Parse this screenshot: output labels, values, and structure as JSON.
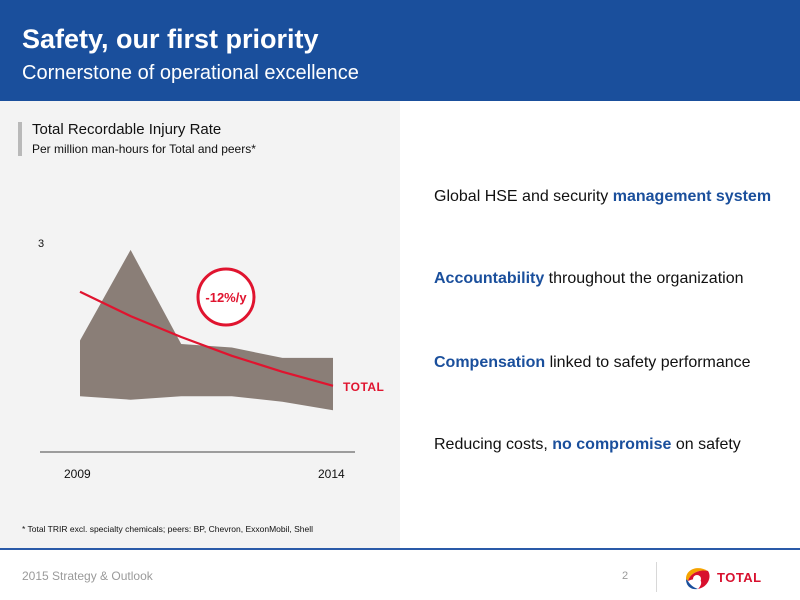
{
  "header": {
    "title": "Safety, our first priority",
    "subtitle": "Cornerstone of operational excellence"
  },
  "chart_data": {
    "type": "area",
    "title": "Total Recordable Injury Rate",
    "subtitle": "Per million man-hours for Total and peers*",
    "x_labels": [
      "2009",
      "2014"
    ],
    "y_tick_label": "3",
    "y_tick_value": 3,
    "ylim": [
      0,
      3.3
    ],
    "x": [
      2009,
      2010,
      2011,
      2012,
      2013,
      2014
    ],
    "series": [
      {
        "values_upper": [
          1.6,
          2.9,
          1.55,
          1.5,
          1.35,
          1.35
        ],
        "values_lower": [
          0.8,
          0.75,
          0.8,
          0.8,
          0.72,
          0.6
        ]
      },
      {
        "name": "TOTAL",
        "values": [
          2.3,
          1.95,
          1.65,
          1.38,
          1.15,
          0.95
        ]
      }
    ],
    "annotation": "-12%/y",
    "series_label": "TOTAL",
    "colors": {
      "band": "#8a7e77",
      "line": "#e0142f",
      "axis": "#444444"
    },
    "grid": false
  },
  "footnote": "* Total TRIR excl. specialty chemicals; peers: BP, Chevron, ExxonMobil, Shell",
  "bullets": [
    {
      "pre": "Global HSE and security ",
      "em": "management system",
      "post": ""
    },
    {
      "pre": "",
      "em": "Accountability",
      "post": " throughout the organization"
    },
    {
      "pre": "",
      "em": "Compensation",
      "post": " linked to safety performance"
    },
    {
      "pre": "Reducing costs, ",
      "em": "no compromise",
      "post": " on safety"
    }
  ],
  "footer": {
    "left": "2015 Strategy & Outlook",
    "page": "2",
    "logo_text": "TOTAL"
  },
  "colors": {
    "header_bg": "#1a4f9c",
    "accent": "#1a4f9c",
    "brand_red": "#d8102e"
  }
}
